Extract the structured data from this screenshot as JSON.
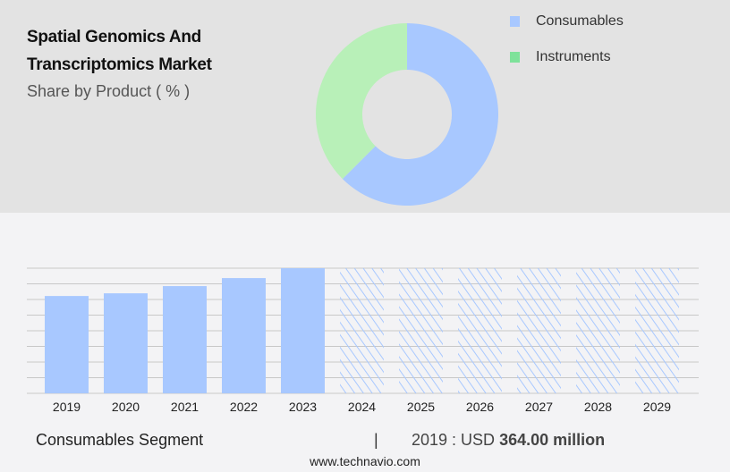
{
  "header": {
    "title_line1": "Spatial Genomics And",
    "title_line2": "Transcriptomics Market",
    "subtitle": "Share by Product ( % )"
  },
  "chart_data": [
    {
      "type": "pie",
      "donut": true,
      "title": "Spatial Genomics And Transcriptomics Market",
      "subtitle": "Share by Product ( % )",
      "categories": [
        "Consumables",
        "Instruments"
      ],
      "values": [
        62.5,
        37.5
      ],
      "colors": [
        "#a8c8ff",
        "#b8f0b8"
      ],
      "legend_colors": [
        "#a8c8ff",
        "#7ee29a"
      ],
      "legend": "right"
    },
    {
      "type": "bar",
      "categories": [
        "2019",
        "2020",
        "2021",
        "2022",
        "2023",
        "2024",
        "2025",
        "2026",
        "2027",
        "2028",
        "2029"
      ],
      "values": [
        364,
        374,
        401,
        431,
        468,
        null,
        null,
        null,
        null,
        null,
        null
      ],
      "forecast_from": "2024",
      "forecast_style": "hatched",
      "color": "#a8c8ff",
      "grid": true,
      "ylim": [
        0,
        468
      ],
      "unit": "USD million"
    }
  ],
  "footer": {
    "segment": "Consumables Segment",
    "separator": "|",
    "year_label": "2019 : USD",
    "value": "364.00 million",
    "source": "www.technavio.com"
  }
}
